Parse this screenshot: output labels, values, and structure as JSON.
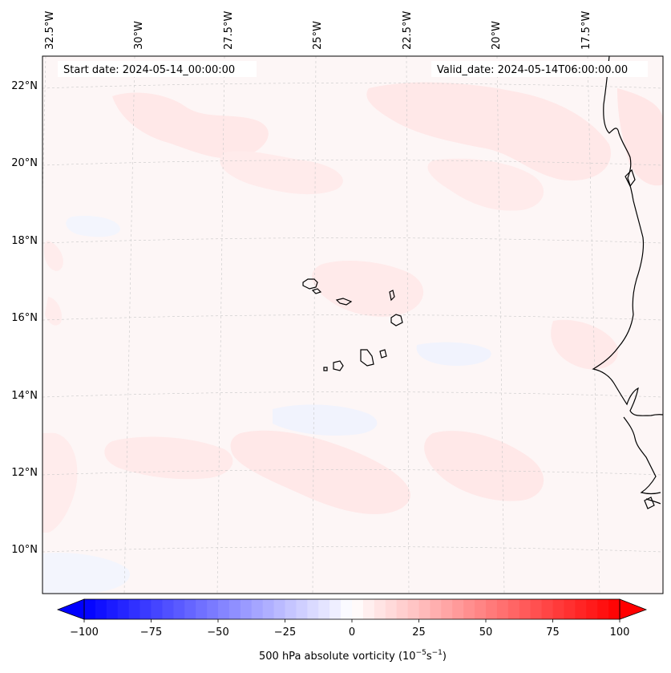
{
  "map": {
    "start_date_label": "Start date: 2024-05-14_00:00:00",
    "valid_date_label": "Valid_date: 2024-05-14T06:00:00.00",
    "lon_labels": [
      "32.5°W",
      "30°W",
      "27.5°W",
      "25°W",
      "22.5°W",
      "20°W",
      "17.5°W"
    ],
    "lat_labels": [
      "22°N",
      "20°N",
      "18°N",
      "16°N",
      "14°N",
      "12°N",
      "10°N"
    ],
    "field": "500 hPa absolute vorticity",
    "background_color": "#fdf6f6",
    "coastline_color": "#000000"
  },
  "colorbar": {
    "label": "500 hPa absolute vorticity (10",
    "label_exp1": "−5",
    "label_mid": "s",
    "label_exp2": "−1",
    "label_end": ")",
    "tick_labels": [
      "−100",
      "−75",
      "−50",
      "−25",
      "0",
      "25",
      "50",
      "75",
      "100"
    ],
    "min": -100,
    "max": 100,
    "levels": 48,
    "low_color": "#0000ff",
    "mid_color": "#ffffff",
    "high_color": "#ff0000"
  }
}
